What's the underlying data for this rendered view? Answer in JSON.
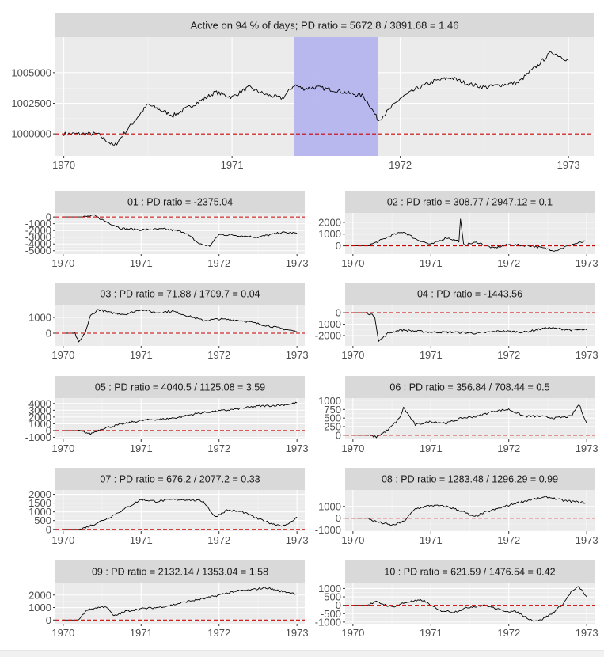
{
  "colors": {
    "panel_bg": "#EBEBEB",
    "strip_bg": "#D9D9D9",
    "grid_major": "#FFFFFF",
    "line": "#000000",
    "reference_line": "#CC0000",
    "highlight": "#B5B5EE",
    "axis_text": "#4D4D4D",
    "strip_text": "#1A1A1A"
  },
  "chart_data": [
    {
      "id": "main",
      "type": "line",
      "title": "Active on 94 % of days; PD ratio =  5672.8 / 3891.68 = 1.46",
      "xlabel": "",
      "ylabel": "",
      "xlim": [
        1969.95,
        1973.15
      ],
      "ylim": [
        998200,
        1007900
      ],
      "x_ticks": [
        1970,
        1971,
        1972,
        1973
      ],
      "x_tick_labels": [
        "1970",
        "1971",
        "1972",
        "1973"
      ],
      "y_ticks": [
        1000000,
        1002500,
        1005000
      ],
      "y_tick_labels": [
        "1000000",
        "1002500",
        "1005000"
      ],
      "reference_y": 1000000,
      "highlight_x": [
        1971.37,
        1971.87
      ],
      "grid": true,
      "x": [
        1970.0,
        1970.2,
        1970.3,
        1970.38,
        1970.5,
        1970.65,
        1970.8,
        1970.9,
        1971.0,
        1971.1,
        1971.2,
        1971.3,
        1971.37,
        1971.42,
        1971.5,
        1971.6,
        1971.7,
        1971.78,
        1971.82,
        1971.87,
        1971.95,
        1972.0,
        1972.1,
        1972.2,
        1972.3,
        1972.4,
        1972.5,
        1972.6,
        1972.7,
        1972.8,
        1972.9,
        1973.0
      ],
      "values": [
        1000000,
        1000000,
        999000,
        1000400,
        1002400,
        1001500,
        1002600,
        1003400,
        1003000,
        1003800,
        1003200,
        1002900,
        1004000,
        1003700,
        1003800,
        1003600,
        1003300,
        1003100,
        1002300,
        1001100,
        1002200,
        1002900,
        1003700,
        1004300,
        1004600,
        1004100,
        1003800,
        1004000,
        1004200,
        1005400,
        1006700,
        1006000
      ]
    },
    {
      "id": "p01",
      "type": "line",
      "title": "01 : PD ratio =  -2375.04",
      "xlim": [
        1969.9,
        1973.1
      ],
      "ylim": [
        -5500,
        600
      ],
      "x_ticks": [
        1970,
        1971,
        1972,
        1973
      ],
      "x_tick_labels": [
        "1970",
        "1971",
        "1972",
        "1973"
      ],
      "y_ticks": [
        0,
        -1000,
        -2000,
        -3000,
        -4000,
        -5000
      ],
      "y_tick_labels": [
        "0",
        "-1000",
        "-2000",
        "-3000",
        "-4000",
        "-5000"
      ],
      "reference_y": 0,
      "grid": true,
      "x": [
        1970.0,
        1970.25,
        1970.4,
        1970.55,
        1970.75,
        1971.0,
        1971.3,
        1971.55,
        1971.75,
        1971.88,
        1972.0,
        1972.2,
        1972.5,
        1972.8,
        1973.0
      ],
      "values": [
        0,
        0,
        200,
        -700,
        -1700,
        -1900,
        -1800,
        -2200,
        -4000,
        -4300,
        -2600,
        -2700,
        -3000,
        -2300,
        -2400
      ]
    },
    {
      "id": "p02",
      "type": "line",
      "title": "02 : PD ratio =  308.77 / 2947.12 = 0.1",
      "xlim": [
        1969.9,
        1973.1
      ],
      "ylim": [
        -700,
        2800
      ],
      "x_ticks": [
        1970,
        1971,
        1972,
        1973
      ],
      "x_tick_labels": [
        "1970",
        "1971",
        "1972",
        "1973"
      ],
      "y_ticks": [
        0,
        1000,
        2000
      ],
      "y_tick_labels": [
        "0",
        "1000",
        "2000"
      ],
      "reference_y": 0,
      "grid": true,
      "x": [
        1970.0,
        1970.18,
        1970.3,
        1970.5,
        1970.65,
        1970.8,
        1971.0,
        1971.2,
        1971.36,
        1971.38,
        1971.42,
        1971.6,
        1971.8,
        1972.0,
        1972.3,
        1972.6,
        1972.8,
        1973.0
      ],
      "values": [
        0,
        0,
        300,
        900,
        1200,
        600,
        100,
        700,
        400,
        2200,
        100,
        300,
        -200,
        100,
        0,
        -400,
        100,
        400
      ]
    },
    {
      "id": "p03",
      "type": "line",
      "title": "03 : PD ratio =  71.88 / 1709.7 = 0.04",
      "xlim": [
        1969.9,
        1973.1
      ],
      "ylim": [
        -800,
        1800
      ],
      "x_ticks": [
        1970,
        1971,
        1972,
        1973
      ],
      "x_tick_labels": [
        "1970",
        "1971",
        "1972",
        "1973"
      ],
      "y_ticks": [
        0,
        1000
      ],
      "y_tick_labels": [
        "0",
        "1000"
      ],
      "reference_y": 0,
      "grid": true,
      "x": [
        1970.0,
        1970.15,
        1970.2,
        1970.28,
        1970.35,
        1970.45,
        1970.6,
        1970.8,
        1971.0,
        1971.2,
        1971.4,
        1971.6,
        1971.8,
        1972.0,
        1972.3,
        1972.6,
        1972.8,
        1973.0
      ],
      "values": [
        0,
        0,
        -600,
        0,
        1100,
        1500,
        1300,
        1200,
        1500,
        1300,
        1400,
        1100,
        800,
        900,
        800,
        500,
        300,
        100
      ]
    },
    {
      "id": "p04",
      "type": "line",
      "title": "04 : PD ratio =  -1443.56",
      "xlim": [
        1969.9,
        1973.1
      ],
      "ylim": [
        -2900,
        700
      ],
      "x_ticks": [
        1970,
        1971,
        1972,
        1973
      ],
      "x_tick_labels": [
        "1970",
        "1971",
        "1972",
        "1973"
      ],
      "y_ticks": [
        0,
        -1000,
        -2000
      ],
      "y_tick_labels": [
        "0",
        "-1000",
        "-2000"
      ],
      "reference_y": 0,
      "grid": true,
      "x": [
        1970.0,
        1970.18,
        1970.28,
        1970.33,
        1970.45,
        1970.6,
        1970.8,
        1971.0,
        1971.3,
        1971.6,
        1971.9,
        1972.2,
        1972.5,
        1972.8,
        1973.0
      ],
      "values": [
        0,
        0,
        -300,
        -2500,
        -1800,
        -1500,
        -1600,
        -1700,
        -1700,
        -1800,
        -1600,
        -1700,
        -1300,
        -1500,
        -1500
      ]
    },
    {
      "id": "p05",
      "type": "line",
      "title": "05 : PD ratio =  4040.5 / 1125.08 = 3.59",
      "xlim": [
        1969.9,
        1973.1
      ],
      "ylim": [
        -1300,
        4800
      ],
      "x_ticks": [
        1970,
        1971,
        1972,
        1973
      ],
      "x_tick_labels": [
        "1970",
        "1971",
        "1972",
        "1973"
      ],
      "y_ticks": [
        -1000,
        0,
        1000,
        2000,
        3000,
        4000
      ],
      "y_tick_labels": [
        "-1000",
        "0",
        "1000",
        "2000",
        "3000",
        "4000"
      ],
      "reference_y": 0,
      "grid": true,
      "x": [
        1970.0,
        1970.2,
        1970.35,
        1970.5,
        1970.7,
        1970.9,
        1971.1,
        1971.3,
        1971.5,
        1971.7,
        1971.9,
        1972.1,
        1972.3,
        1972.5,
        1972.7,
        1972.9,
        1973.0
      ],
      "values": [
        0,
        0,
        -500,
        300,
        800,
        1300,
        1600,
        1700,
        2000,
        2500,
        2800,
        3000,
        3300,
        3600,
        3700,
        3900,
        4100
      ]
    },
    {
      "id": "p06",
      "type": "line",
      "title": "06 : PD ratio =  356.84 / 708.44 = 0.5",
      "xlim": [
        1969.9,
        1973.1
      ],
      "ylim": [
        -120,
        1080
      ],
      "x_ticks": [
        1970,
        1971,
        1972,
        1973
      ],
      "x_tick_labels": [
        "1970",
        "1971",
        "1972",
        "1973"
      ],
      "y_ticks": [
        0,
        250,
        500,
        750,
        1000
      ],
      "y_tick_labels": [
        "0",
        "250",
        "500",
        "750",
        "1000"
      ],
      "reference_y": 0,
      "grid": true,
      "x": [
        1970.0,
        1970.18,
        1970.3,
        1970.45,
        1970.6,
        1970.65,
        1970.8,
        1971.0,
        1971.2,
        1971.4,
        1971.6,
        1971.8,
        1972.0,
        1972.2,
        1972.4,
        1972.6,
        1972.8,
        1972.9,
        1973.0
      ],
      "values": [
        0,
        0,
        -50,
        150,
        500,
        800,
        300,
        400,
        350,
        500,
        550,
        700,
        750,
        550,
        550,
        500,
        550,
        900,
        350
      ]
    },
    {
      "id": "p07",
      "type": "line",
      "title": "07 : PD ratio =  676.2 / 2077.2 = 0.33",
      "xlim": [
        1969.9,
        1973.1
      ],
      "ylim": [
        -100,
        2250
      ],
      "x_ticks": [
        1970,
        1971,
        1972,
        1973
      ],
      "x_tick_labels": [
        "1970",
        "1971",
        "1972",
        "1973"
      ],
      "y_ticks": [
        0,
        500,
        1000,
        1500,
        2000
      ],
      "y_tick_labels": [
        "0",
        "500",
        "1000",
        "1500",
        "2000"
      ],
      "reference_y": 0,
      "grid": true,
      "x": [
        1970.0,
        1970.22,
        1970.4,
        1970.6,
        1970.8,
        1971.0,
        1971.2,
        1971.4,
        1971.6,
        1971.8,
        1971.95,
        1972.1,
        1972.3,
        1972.5,
        1972.7,
        1972.85,
        1973.0
      ],
      "values": [
        0,
        0,
        300,
        700,
        1200,
        1700,
        1600,
        1700,
        1700,
        1600,
        700,
        1100,
        1000,
        600,
        300,
        200,
        700
      ]
    },
    {
      "id": "p08",
      "type": "line",
      "title": "08 : PD ratio =  1283.48 / 1296.29 = 0.99",
      "xlim": [
        1969.9,
        1973.1
      ],
      "ylim": [
        -1100,
        2400
      ],
      "x_ticks": [
        1970,
        1971,
        1972,
        1973
      ],
      "x_tick_labels": [
        "1970",
        "1971",
        "1972",
        "1973"
      ],
      "y_ticks": [
        -1000,
        0,
        1000
      ],
      "y_tick_labels": [
        "-1000",
        "0",
        "1000"
      ],
      "reference_y": 0,
      "grid": true,
      "x": [
        1970.0,
        1970.18,
        1970.3,
        1970.5,
        1970.65,
        1970.8,
        1971.0,
        1971.2,
        1971.4,
        1971.55,
        1971.7,
        1971.9,
        1972.1,
        1972.3,
        1972.5,
        1972.7,
        1973.0
      ],
      "values": [
        0,
        0,
        -300,
        -600,
        -300,
        800,
        1100,
        1000,
        600,
        100,
        500,
        900,
        1300,
        1600,
        1800,
        1500,
        1300
      ]
    },
    {
      "id": "p09",
      "type": "line",
      "title": "09 : PD ratio =  2132.14 / 1353.04 = 1.58",
      "xlim": [
        1969.9,
        1973.1
      ],
      "ylim": [
        -300,
        3000
      ],
      "x_ticks": [
        1970,
        1971,
        1972,
        1973
      ],
      "x_tick_labels": [
        "1970",
        "1971",
        "1972",
        "1973"
      ],
      "y_ticks": [
        0,
        1000,
        2000
      ],
      "y_tick_labels": [
        "0",
        "1000",
        "2000"
      ],
      "reference_y": 0,
      "grid": true,
      "x": [
        1970.0,
        1970.2,
        1970.3,
        1970.45,
        1970.55,
        1970.65,
        1970.8,
        1971.0,
        1971.2,
        1971.4,
        1971.6,
        1971.8,
        1972.0,
        1972.2,
        1972.4,
        1972.6,
        1972.8,
        1973.0
      ],
      "values": [
        0,
        0,
        800,
        1000,
        1100,
        300,
        700,
        900,
        1000,
        1200,
        1500,
        1700,
        2000,
        2300,
        2400,
        2600,
        2300,
        2100
      ]
    },
    {
      "id": "p10",
      "type": "line",
      "title": "10 : PD ratio =  621.59 / 1476.54 = 0.42",
      "xlim": [
        1969.9,
        1973.1
      ],
      "ylim": [
        -1100,
        1350
      ],
      "x_ticks": [
        1970,
        1971,
        1972,
        1973
      ],
      "x_tick_labels": [
        "1970",
        "1971",
        "1972",
        "1973"
      ],
      "y_ticks": [
        -1000,
        -500,
        0,
        500,
        1000
      ],
      "y_tick_labels": [
        "-1000",
        "-500",
        "0",
        "500",
        "1000"
      ],
      "reference_y": 0,
      "grid": true,
      "x": [
        1970.0,
        1970.18,
        1970.3,
        1970.5,
        1970.7,
        1970.9,
        1971.1,
        1971.3,
        1971.5,
        1971.7,
        1971.9,
        1972.1,
        1972.3,
        1972.4,
        1972.55,
        1972.7,
        1972.8,
        1972.9,
        1973.0
      ],
      "values": [
        0,
        0,
        200,
        -100,
        200,
        300,
        -300,
        -400,
        -100,
        0,
        -300,
        -400,
        -900,
        -900,
        -500,
        100,
        800,
        1100,
        500
      ]
    }
  ]
}
